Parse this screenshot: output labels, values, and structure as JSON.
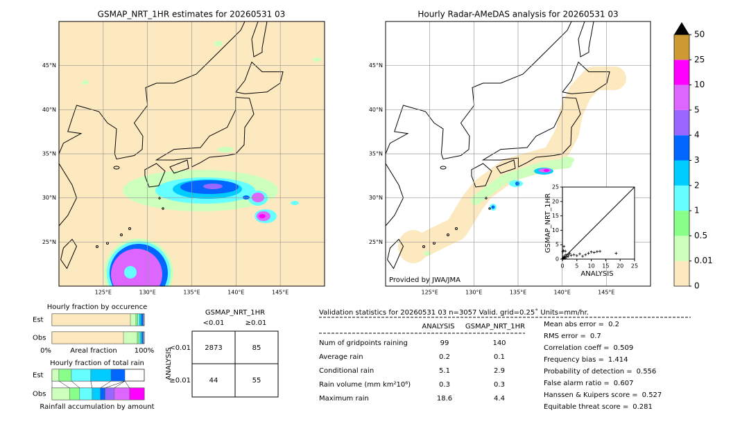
{
  "left_map": {
    "title": "GSMAP_NRT_1HR estimates for 20260531 03",
    "xlim": [
      120,
      150
    ],
    "ylim": [
      20,
      50
    ],
    "xticks": [
      {
        "value": 125,
        "label": "125°E"
      },
      {
        "value": 130,
        "label": "130°E"
      },
      {
        "value": 135,
        "label": "135°E"
      },
      {
        "value": 140,
        "label": "140°E"
      },
      {
        "value": 145,
        "label": "145°E"
      }
    ],
    "yticks": [
      {
        "value": 25,
        "label": "25°N"
      },
      {
        "value": 30,
        "label": "30°N"
      },
      {
        "value": 35,
        "label": "35°N"
      },
      {
        "value": 40,
        "label": "40°N"
      },
      {
        "value": 45,
        "label": "45°N"
      }
    ]
  },
  "right_map": {
    "title": "Hourly Radar-AMeDAS analysis for 20260531 03",
    "credit": "Provided by JWA/JMA",
    "xlim": [
      120,
      150
    ],
    "ylim": [
      20,
      50
    ],
    "xticks": [
      {
        "value": 125,
        "label": "125°E"
      },
      {
        "value": 130,
        "label": "130°E"
      },
      {
        "value": 135,
        "label": "135°E"
      },
      {
        "value": 140,
        "label": "140°E"
      },
      {
        "value": 145,
        "label": "145°E"
      }
    ],
    "yticks": [
      {
        "value": 25,
        "label": "25°N"
      },
      {
        "value": 30,
        "label": "30°N"
      },
      {
        "value": 35,
        "label": "35°N"
      },
      {
        "value": 40,
        "label": "40°N"
      },
      {
        "value": 45,
        "label": "45°N"
      }
    ]
  },
  "scatter": {
    "type": "scatter",
    "xlabel": "ANALYSIS",
    "ylabel": "GSMAP_NRT_1HR",
    "xlim": [
      0,
      25
    ],
    "ylim": [
      0,
      25
    ],
    "xticks": [
      0,
      5,
      10,
      15,
      20,
      25
    ],
    "yticks": [
      0,
      5,
      10,
      15,
      20,
      25
    ],
    "x": [
      0.1,
      0.2,
      0.3,
      0.5,
      0.6,
      0.8,
      1,
      1.2,
      1.5,
      2,
      2.5,
      3,
      4,
      5,
      6,
      7,
      8,
      9,
      10,
      11,
      12,
      13,
      18.6,
      0.1,
      0.3,
      0.5,
      1,
      2
    ],
    "y": [
      0.1,
      0.3,
      0.5,
      0.2,
      1,
      0.6,
      0.3,
      1.5,
      0.8,
      1,
      2,
      1.3,
      1.5,
      1.2,
      1.8,
      1,
      1.5,
      2,
      2.5,
      2.3,
      2.6,
      2.7,
      2,
      2.5,
      3,
      4.4,
      2.8,
      1.5
    ],
    "color": "#000000"
  },
  "colorbar": {
    "levels": [
      0,
      0.01,
      0.5,
      1,
      2,
      3,
      4,
      5,
      10,
      25,
      50
    ],
    "colors": [
      "#fde9c0",
      "#ccffbb",
      "#88ff88",
      "#66ffff",
      "#00ccff",
      "#0066ff",
      "#9966ff",
      "#dd66ff",
      "#ff00ff",
      "#cc9933"
    ],
    "extend_color": "#000000"
  },
  "occurrence": {
    "title": "Hourly fraction by occurence",
    "xlabel": "Areal fraction",
    "xmin_label": "0%",
    "xmax_label": "100%",
    "colors": [
      "#fde9c0",
      "#ccffbb",
      "#88ff88",
      "#66ffff",
      "#00ccff",
      "#0066ff"
    ],
    "rows": [
      {
        "name": "Est",
        "values": [
          0.85,
          0.06,
          0.02,
          0.02,
          0.02,
          0.02
        ]
      },
      {
        "name": "Obs",
        "values": [
          0.775,
          0.15,
          0.02,
          0.015,
          0.015,
          0.015
        ]
      }
    ]
  },
  "total_rain": {
    "title": "Hourly fraction of total rain",
    "xlabel": "Rainfall accumulation by amount",
    "colors": [
      "#ccffbb",
      "#88ff88",
      "#66ffff",
      "#00ccff",
      "#0066ff",
      "#9966ff",
      "#dd66ff",
      "#ff00ff"
    ],
    "rows": [
      {
        "name": "Est",
        "values": [
          0.075,
          0.135,
          0.21,
          0.22,
          0.15,
          0,
          0,
          0
        ]
      },
      {
        "name": "Obs",
        "values": [
          0.19,
          0.11,
          0.135,
          0.09,
          0.05,
          0.1,
          0.165,
          0.16
        ]
      }
    ]
  },
  "contingency": {
    "title": "GSMAP_NRT_1HR",
    "columns": [
      "<0.01",
      "≥0.01"
    ],
    "row_title": "ANALYSIS",
    "rows": [
      "<0.01",
      "≥0.01"
    ],
    "cells": [
      [
        2873,
        85
      ],
      [
        44,
        55
      ]
    ]
  },
  "validation": {
    "header": "Validation statistics for 20260531 03  n=3057 Valid. grid=0.25˚ Units=mm/hr.",
    "columns": [
      "ANALYSIS",
      "GSMAP_NRT_1HR"
    ],
    "rows": [
      {
        "label": "Num of gridpoints raining",
        "values": [
          99,
          140
        ]
      },
      {
        "label": "Average rain",
        "values": [
          0.2,
          0.1
        ]
      },
      {
        "label": "Conditional rain",
        "values": [
          5.1,
          2.9
        ]
      },
      {
        "label": "Rain volume (mm km²10⁶)",
        "values": [
          0.3,
          0.3
        ]
      },
      {
        "label": "Maximum rain",
        "values": [
          18.6,
          4.4
        ]
      }
    ]
  },
  "scores": [
    {
      "label": "Mean abs error =",
      "value": 0.2
    },
    {
      "label": "RMS error =",
      "value": 0.7
    },
    {
      "label": "Correlation coeff =",
      "value": 0.509
    },
    {
      "label": "Frequency bias =",
      "value": 1.414
    },
    {
      "label": "Probability of detection =",
      "value": 0.556
    },
    {
      "label": "False alarm ratio =",
      "value": 0.607
    },
    {
      "label": "Hanssen & Kuipers score =",
      "value": 0.527
    },
    {
      "label": "Equitable threat score =",
      "value": 0.281
    }
  ]
}
